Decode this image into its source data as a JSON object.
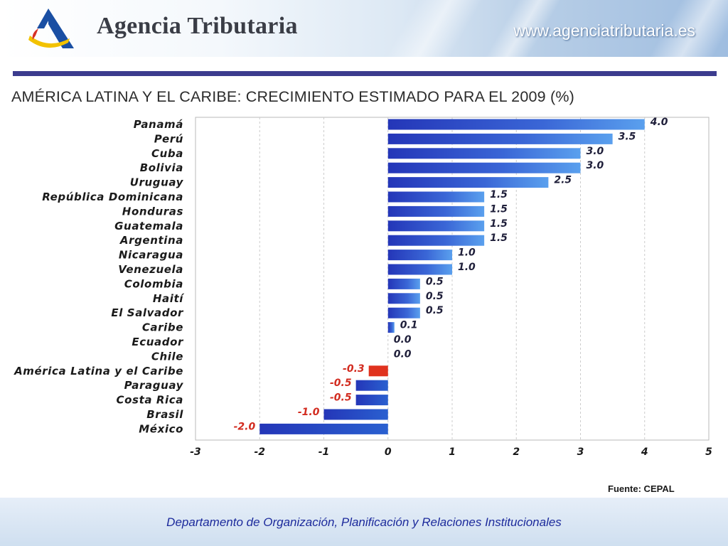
{
  "header": {
    "agency_name": "Agencia Tributaria",
    "website": "www.agenciatributaria.es",
    "colors": {
      "logo_blue": "#1a4fa3",
      "logo_yellow": "#f2c200",
      "logo_red": "#d63126",
      "divider": "#3c3c8e"
    }
  },
  "chart_data": {
    "type": "bar",
    "orientation": "horizontal",
    "title": "AMÉRICA LATINA Y EL CARIBE: CRECIMIENTO ESTIMADO PARA EL 2009 (%)",
    "categories": [
      "Panamá",
      "Perú",
      "Cuba",
      "Bolivia",
      "Uruguay",
      "República Dominicana",
      "Honduras",
      "Guatemala",
      "Argentina",
      "Nicaragua",
      "Venezuela",
      "Colombia",
      "Haití",
      "El Salvador",
      "Caribe",
      "Ecuador",
      "Chile",
      "América Latina y el Caribe",
      "Paraguay",
      "Costa Rica",
      "Brasil",
      "México"
    ],
    "values": [
      4.0,
      3.5,
      3.0,
      3.0,
      2.5,
      1.5,
      1.5,
      1.5,
      1.5,
      1.0,
      1.0,
      0.5,
      0.5,
      0.5,
      0.1,
      0.0,
      0.0,
      -0.3,
      -0.5,
      -0.5,
      -1.0,
      -2.0
    ],
    "value_labels": [
      "4.0",
      "3.5",
      "3.0",
      "3.0",
      "2.5",
      "1.5",
      "1.5",
      "1.5",
      "1.5",
      "1.0",
      "1.0",
      "0.5",
      "0.5",
      "0.5",
      "0.1",
      "0.0",
      "0.0",
      "-0.3",
      "-0.5",
      "-0.5",
      "-1.0",
      "-2.0"
    ],
    "highlight_category": "América Latina y el Caribe",
    "xlim": [
      -3,
      5
    ],
    "xticks": [
      "-3",
      "-2",
      "-1",
      "0",
      "1",
      "2",
      "3",
      "4",
      "5"
    ],
    "grid": "vertical dashed",
    "colors": {
      "bar": "#2a3fc0",
      "highlight_bar": "#e0321e",
      "negative_label": "#d22b1f"
    },
    "source": "Fuente: CEPAL"
  },
  "footer": {
    "text": "Departamento de Organización, Planificación y Relaciones Institucionales"
  }
}
